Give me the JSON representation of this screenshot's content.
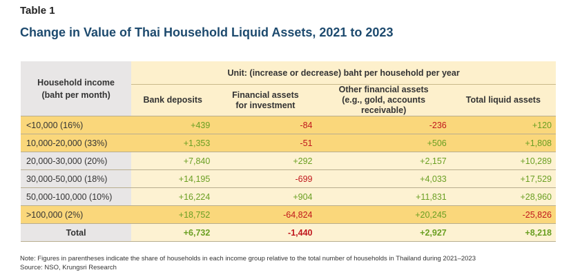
{
  "label": "Table 1",
  "title": "Change in Value of Thai Household Liquid Assets, 2021 to 2023",
  "header": {
    "income_line1": "Household income",
    "income_line2": "(baht per month)",
    "unit": "Unit: (increase or decrease) baht per household per year",
    "columns": [
      {
        "l1": "Bank deposits",
        "l2": ""
      },
      {
        "l1": "Financial assets",
        "l2": "for investment"
      },
      {
        "l1": "Other financial assets",
        "l2": "(e.g., gold, accounts receivable)"
      },
      {
        "l1": "Total liquid assets",
        "l2": ""
      }
    ]
  },
  "rows": [
    {
      "label": "<10,000 (16%)",
      "highlight": true,
      "values": [
        "+439",
        "-84",
        "-236",
        "+120"
      ]
    },
    {
      "label": "10,000-20,000 (33%)",
      "highlight": true,
      "values": [
        "+1,353",
        "-51",
        "+506",
        "+1,808"
      ]
    },
    {
      "label": "20,000-30,000 (20%)",
      "highlight": false,
      "values": [
        "+7,840",
        "+292",
        "+2,157",
        "+10,289"
      ]
    },
    {
      "label": "30,000-50,000 (18%)",
      "highlight": false,
      "values": [
        "+14,195",
        "-699",
        "+4,033",
        "+17,529"
      ]
    },
    {
      "label": "50,000-100,000 (10%)",
      "highlight": false,
      "values": [
        "+16,224",
        "+904",
        "+11,831",
        "+28,960"
      ]
    },
    {
      "label": ">100,000 (2%)",
      "highlight": true,
      "values": [
        "+18,752",
        "-64,824",
        "+20,245",
        "-25,826"
      ]
    },
    {
      "label": "Total",
      "highlight": false,
      "total": true,
      "values": [
        "+6,732",
        "-1,440",
        "+2,927",
        "+8,218"
      ]
    }
  ],
  "colors": {
    "positive": "#6a9f22",
    "negative": "#c0161b",
    "highlight": "#fad77b",
    "title": "#1d4a6e"
  },
  "note": "Note: Figures in parentheses indicate the share of households in each income group relative to the total number of households in Thailand during 2021–2023",
  "source": "Source: NSO, Krungsri Research"
}
